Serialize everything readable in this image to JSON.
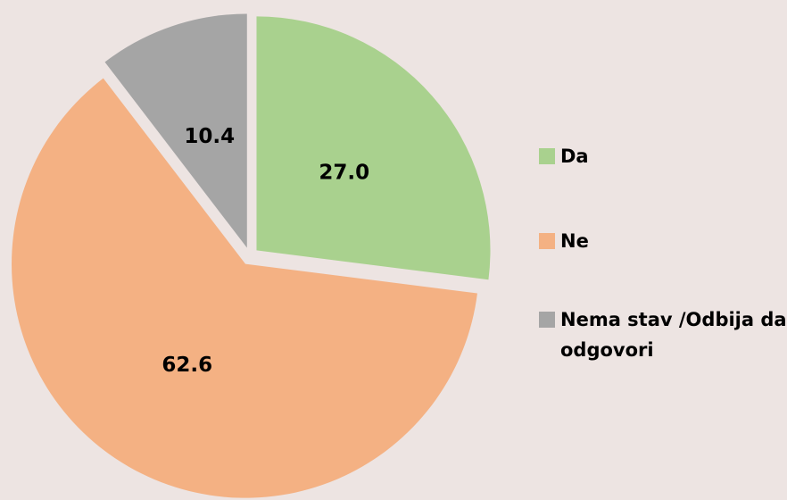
{
  "chart_data": {
    "type": "pie",
    "categories": [
      "Da",
      "Ne",
      "Nema stav /Odbija da odgovori"
    ],
    "values": [
      27.0,
      62.6,
      10.4
    ],
    "value_labels": [
      "27.0",
      "62.6",
      "10.4"
    ],
    "colors": [
      "#a9d18e",
      "#f4b183",
      "#a5a5a5"
    ],
    "legend": "right"
  }
}
